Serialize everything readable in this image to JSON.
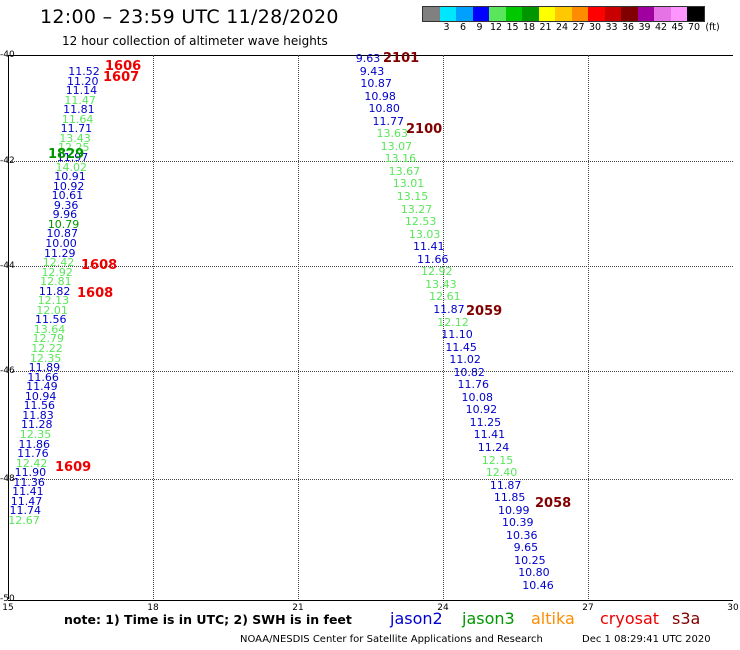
{
  "title": "12:00 – 23:59 UTC 11/28/2020",
  "subtitle": "12 hour collection of altimeter wave heights",
  "legend": {
    "labels": [
      "3",
      "6",
      "9",
      "12",
      "15",
      "18",
      "21",
      "24",
      "27",
      "30",
      "33",
      "36",
      "39",
      "42",
      "45",
      "70"
    ],
    "unit": "(ft)",
    "colors": [
      "#808080",
      "#00e6ff",
      "#00a0ff",
      "#0000ff",
      "#5ae65a",
      "#00c800",
      "#009600",
      "#ffff00",
      "#ffc800",
      "#ff8c00",
      "#ff0000",
      "#c80000",
      "#800000",
      "#a000a0",
      "#e673e6",
      "#ff96ff",
      "#000000"
    ]
  },
  "y_ticks": [
    "-40",
    "-42",
    "-44",
    "-46",
    "-48",
    "-50"
  ],
  "x_ticks": [
    "15",
    "18",
    "21",
    "24",
    "27",
    "30"
  ],
  "left_track": [
    {
      "v": "11.52",
      "c": "#0000cc"
    },
    {
      "v": "11.20",
      "c": "#0000cc"
    },
    {
      "v": "11.14",
      "c": "#0000cc"
    },
    {
      "v": "11.47",
      "c": "#5ae65a"
    },
    {
      "v": "11.81",
      "c": "#0000cc"
    },
    {
      "v": "11.64",
      "c": "#5ae65a"
    },
    {
      "v": "11.71",
      "c": "#0000cc"
    },
    {
      "v": "13.43",
      "c": "#5ae65a"
    },
    {
      "v": "12.25",
      "c": "#5ae65a"
    },
    {
      "v": "11.97",
      "c": "#0000cc"
    },
    {
      "v": "14.02",
      "c": "#5ae65a"
    },
    {
      "v": "10.91",
      "c": "#0000cc"
    },
    {
      "v": "10.92",
      "c": "#0000cc"
    },
    {
      "v": "10.61",
      "c": "#0000cc"
    },
    {
      "v": "9.36",
      "c": "#0000cc"
    },
    {
      "v": "9.96",
      "c": "#0000cc"
    },
    {
      "v": "10.79",
      "c": "#009600"
    },
    {
      "v": "10.87",
      "c": "#0000cc"
    },
    {
      "v": "10.00",
      "c": "#0000cc"
    },
    {
      "v": "11.29",
      "c": "#0000cc"
    },
    {
      "v": "12.42",
      "c": "#5ae65a"
    },
    {
      "v": "12.92",
      "c": "#5ae65a"
    },
    {
      "v": "12.81",
      "c": "#5ae65a"
    },
    {
      "v": "11.82",
      "c": "#0000cc"
    },
    {
      "v": "12.13",
      "c": "#5ae65a"
    },
    {
      "v": "12.01",
      "c": "#5ae65a"
    },
    {
      "v": "11.56",
      "c": "#0000cc"
    },
    {
      "v": "13.64",
      "c": "#5ae65a"
    },
    {
      "v": "12.79",
      "c": "#5ae65a"
    },
    {
      "v": "12.22",
      "c": "#5ae65a"
    },
    {
      "v": "12.35",
      "c": "#5ae65a"
    },
    {
      "v": "11.89",
      "c": "#0000cc"
    },
    {
      "v": "11.66",
      "c": "#0000cc"
    },
    {
      "v": "11.49",
      "c": "#0000cc"
    },
    {
      "v": "10.94",
      "c": "#0000cc"
    },
    {
      "v": "11.56",
      "c": "#0000cc"
    },
    {
      "v": "11.83",
      "c": "#0000cc"
    },
    {
      "v": "11.28",
      "c": "#0000cc"
    },
    {
      "v": "12.35",
      "c": "#5ae65a"
    },
    {
      "v": "11.86",
      "c": "#0000cc"
    },
    {
      "v": "11.76",
      "c": "#0000cc"
    },
    {
      "v": "12.42",
      "c": "#5ae65a"
    },
    {
      "v": "11.90",
      "c": "#0000cc"
    },
    {
      "v": "11.36",
      "c": "#0000cc"
    },
    {
      "v": "11.41",
      "c": "#0000cc"
    },
    {
      "v": "11.47",
      "c": "#0000cc"
    },
    {
      "v": "11.74",
      "c": "#0000cc"
    },
    {
      "v": "12.67",
      "c": "#5ae65a"
    }
  ],
  "right_track": [
    {
      "v": "9.63",
      "c": "#0000cc"
    },
    {
      "v": "9.43",
      "c": "#0000cc"
    },
    {
      "v": "10.87",
      "c": "#0000cc"
    },
    {
      "v": "10.98",
      "c": "#0000cc"
    },
    {
      "v": "10.80",
      "c": "#0000cc"
    },
    {
      "v": "11.77",
      "c": "#0000cc"
    },
    {
      "v": "13.63",
      "c": "#5ae65a"
    },
    {
      "v": "13.07",
      "c": "#5ae65a"
    },
    {
      "v": "13.16",
      "c": "#5ae65a"
    },
    {
      "v": "13.67",
      "c": "#5ae65a"
    },
    {
      "v": "13.01",
      "c": "#5ae65a"
    },
    {
      "v": "13.15",
      "c": "#5ae65a"
    },
    {
      "v": "13.27",
      "c": "#5ae65a"
    },
    {
      "v": "12.53",
      "c": "#5ae65a"
    },
    {
      "v": "13.03",
      "c": "#5ae65a"
    },
    {
      "v": "11.41",
      "c": "#0000cc"
    },
    {
      "v": "11.66",
      "c": "#0000cc"
    },
    {
      "v": "12.92",
      "c": "#5ae65a"
    },
    {
      "v": "13.43",
      "c": "#5ae65a"
    },
    {
      "v": "12.61",
      "c": "#5ae65a"
    },
    {
      "v": "11.87",
      "c": "#0000cc"
    },
    {
      "v": "12.12",
      "c": "#5ae65a"
    },
    {
      "v": "11.10",
      "c": "#0000cc"
    },
    {
      "v": "11.45",
      "c": "#0000cc"
    },
    {
      "v": "11.02",
      "c": "#0000cc"
    },
    {
      "v": "10.82",
      "c": "#0000cc"
    },
    {
      "v": "11.76",
      "c": "#0000cc"
    },
    {
      "v": "10.08",
      "c": "#0000cc"
    },
    {
      "v": "10.92",
      "c": "#0000cc"
    },
    {
      "v": "11.25",
      "c": "#0000cc"
    },
    {
      "v": "11.41",
      "c": "#0000cc"
    },
    {
      "v": "11.24",
      "c": "#0000cc"
    },
    {
      "v": "12.15",
      "c": "#5ae65a"
    },
    {
      "v": "12.40",
      "c": "#5ae65a"
    },
    {
      "v": "11.87",
      "c": "#0000cc"
    },
    {
      "v": "11.85",
      "c": "#0000cc"
    },
    {
      "v": "10.99",
      "c": "#0000cc"
    },
    {
      "v": "10.39",
      "c": "#0000cc"
    },
    {
      "v": "10.36",
      "c": "#0000cc"
    },
    {
      "v": "9.65",
      "c": "#0000cc"
    },
    {
      "v": "10.25",
      "c": "#0000cc"
    },
    {
      "v": "10.80",
      "c": "#0000cc"
    },
    {
      "v": "10.46",
      "c": "#0000cc"
    }
  ],
  "time_labels": [
    {
      "t": "1606",
      "c": "#ee0000"
    },
    {
      "t": "1607",
      "c": "#ee0000"
    },
    {
      "t": "1608",
      "c": "#ee0000"
    },
    {
      "t": "1608",
      "c": "#ee0000"
    },
    {
      "t": "1609",
      "c": "#ee0000"
    },
    {
      "t": "2101",
      "c": "#800000"
    },
    {
      "t": "2100",
      "c": "#800000"
    },
    {
      "t": "2059",
      "c": "#800000"
    },
    {
      "t": "2058",
      "c": "#800000"
    },
    {
      "t": "1829",
      "c": "#009600"
    }
  ],
  "note": "note:  1) Time is in UTC;  2) SWH is in feet",
  "satellites": [
    {
      "name": "jason2",
      "color": "#0000cc"
    },
    {
      "name": "jason3",
      "color": "#009600"
    },
    {
      "name": "altika",
      "color": "#ff8c00"
    },
    {
      "name": "cryosat",
      "color": "#ee0000"
    },
    {
      "name": "s3a",
      "color": "#800000"
    }
  ],
  "footer": {
    "center": "NOAA/NESDIS Center for Satellite Applications and Research",
    "timestamp": "Dec  1 08:29:41 UTC 2020"
  }
}
